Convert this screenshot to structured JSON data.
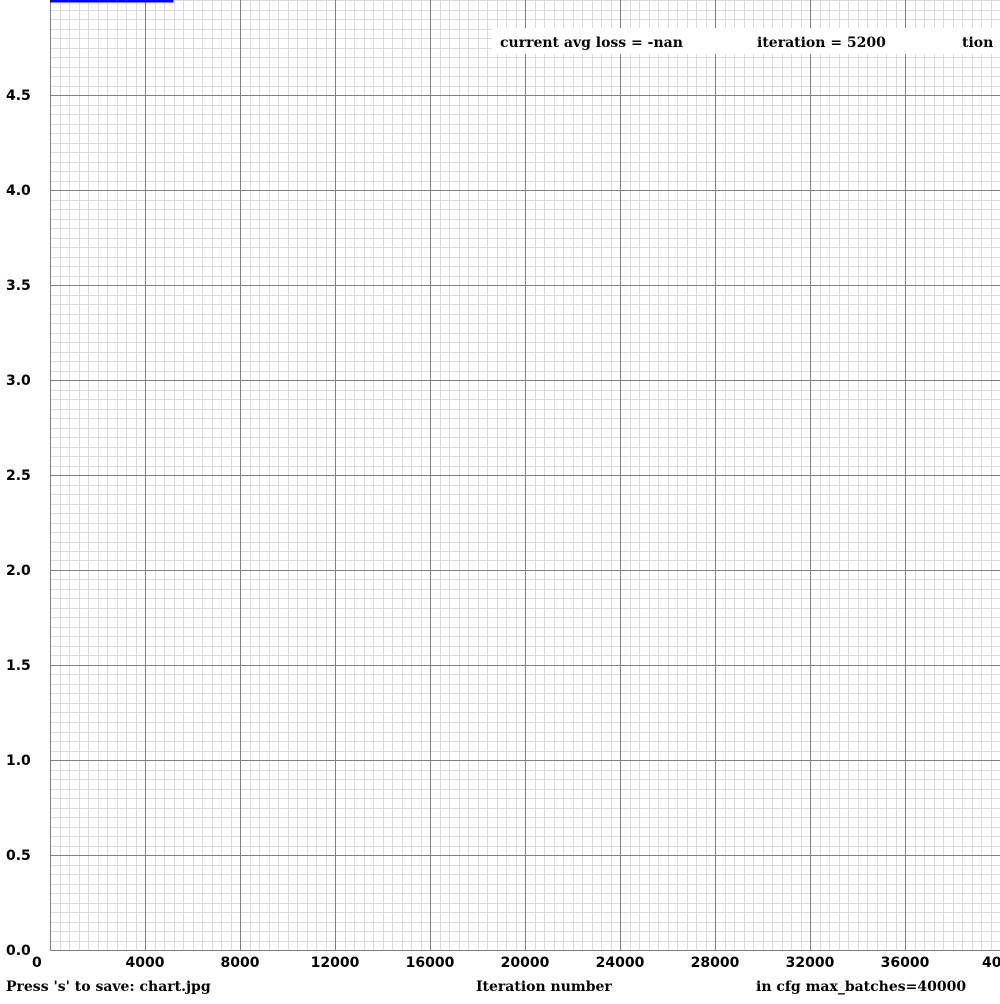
{
  "chart_data": {
    "type": "line",
    "title": "",
    "xlabel": "Iteration number",
    "ylabel": "",
    "xlim": [
      0,
      40000
    ],
    "ylim": [
      0,
      5
    ],
    "grid": true,
    "x_ticks": [
      0,
      4000,
      8000,
      12000,
      16000,
      20000,
      24000,
      28000,
      32000,
      36000
    ],
    "x_tick_labels": [
      "0",
      "4000",
      "8000",
      "12000",
      "16000",
      "20000",
      "24000",
      "28000",
      "32000",
      "36000"
    ],
    "x_tick_last_label": "40",
    "y_ticks": [
      0.0,
      0.5,
      1.0,
      1.5,
      2.0,
      2.5,
      3.0,
      3.5,
      4.0,
      4.5
    ],
    "y_tick_labels": [
      "0.0",
      "0.5",
      "1.0",
      "1.5",
      "2.0",
      "2.5",
      "3.0",
      "3.5",
      "4.0",
      "4.5"
    ],
    "series": [
      {
        "color": "#0000ff",
        "x": [
          0,
          5200
        ],
        "y": [
          5,
          5
        ]
      }
    ]
  },
  "status": {
    "avg_loss_text": "current avg loss = -nan",
    "iteration_text": "iteration = 5200",
    "truncated_text": "tion"
  },
  "footer": {
    "save_hint": "Press 's' to save: chart.jpg",
    "axis_label": "Iteration number",
    "max_batches": "in cfg max_batches=40000"
  },
  "colors": {
    "background": "#ffffff",
    "grid_minor": "#dcdcdc",
    "grid_major": "#808080",
    "series": "#0000ff"
  }
}
